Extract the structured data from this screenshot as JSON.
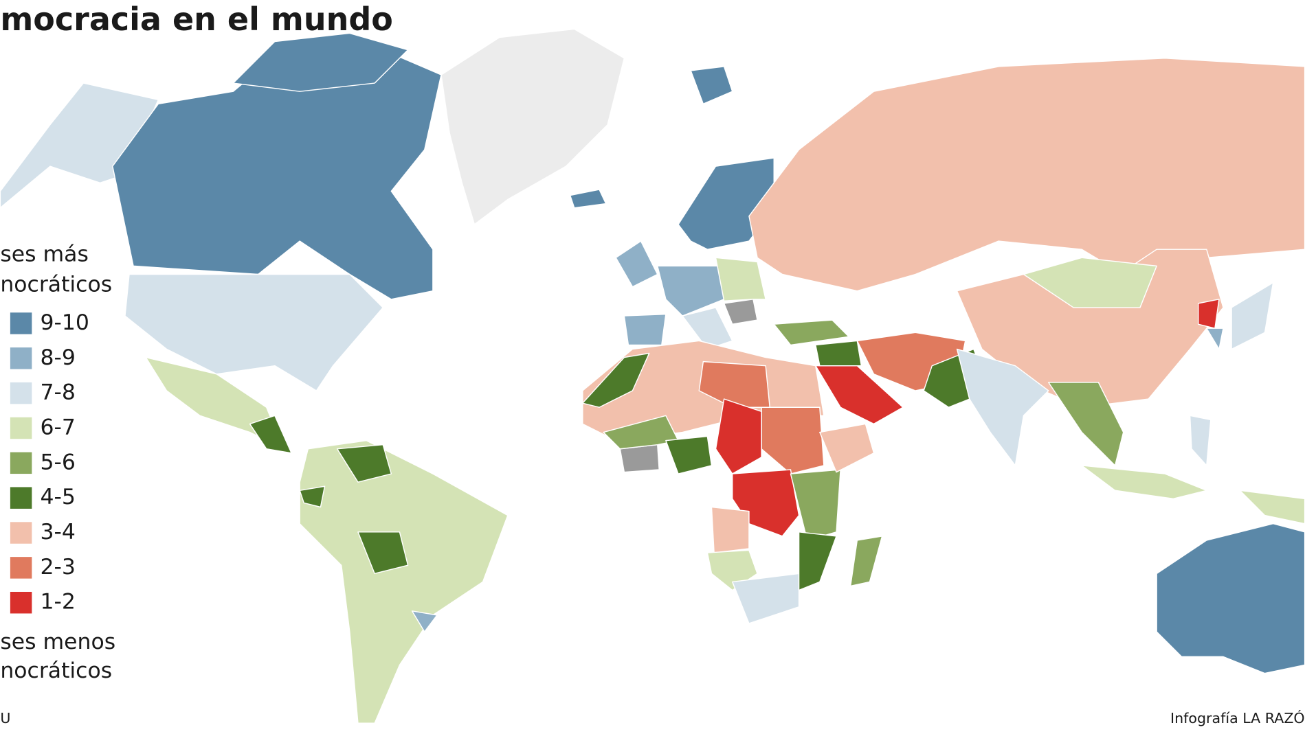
{
  "title": "mocracia en el mundo",
  "legend": {
    "top_heading": [
      "ses más",
      "nocráticos"
    ],
    "items": [
      {
        "label": "9-10",
        "color": "#5b88a8"
      },
      {
        "label": "8-9",
        "color": "#8fb0c7"
      },
      {
        "label": "7-8",
        "color": "#d4e1ea"
      },
      {
        "label": "6-7",
        "color": "#d4e3b5"
      },
      {
        "label": "5-6",
        "color": "#8aa85e"
      },
      {
        "label": "4-5",
        "color": "#4d7a2a"
      },
      {
        "label": "3-4",
        "color": "#f2c0ac"
      },
      {
        "label": "2-3",
        "color": "#e07a5e"
      },
      {
        "label": "1-2",
        "color": "#d9302c"
      }
    ],
    "bottom_heading": [
      "ses menos",
      "nocráticos"
    ]
  },
  "source": "U",
  "credit": "Infografía LA RAZÓ"
}
